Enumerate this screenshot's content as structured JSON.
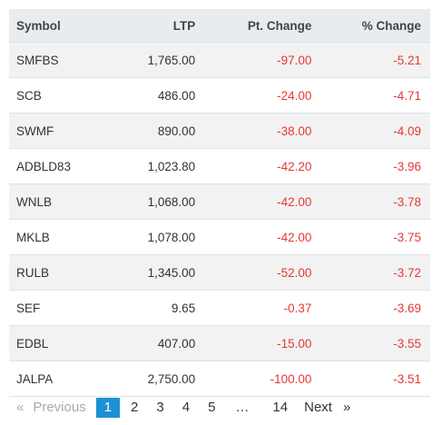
{
  "table": {
    "header": [
      "Symbol",
      "LTP",
      "Pt. Change",
      "% Change"
    ],
    "rows": [
      [
        "SMFBS",
        "1,765.00",
        "-97.00",
        "-5.21"
      ],
      [
        "SCB",
        "486.00",
        "-24.00",
        "-4.71"
      ],
      [
        "SWMF",
        "890.00",
        "-38.00",
        "-4.09"
      ],
      [
        "ADBLD83",
        "1,023.80",
        "-42.20",
        "-3.96"
      ],
      [
        "WNLB",
        "1,068.00",
        "-42.00",
        "-3.78"
      ],
      [
        "MKLB",
        "1,078.00",
        "-42.00",
        "-3.75"
      ],
      [
        "RULB",
        "1,345.00",
        "-52.00",
        "-3.72"
      ],
      [
        "SEF",
        "9.65",
        "-0.37",
        "-3.69"
      ],
      [
        "EDBL",
        "407.00",
        "-15.00",
        "-3.55"
      ],
      [
        "JALPA",
        "2,750.00",
        "-100.00",
        "-3.51"
      ]
    ]
  },
  "pagination": {
    "previous": [
      "«",
      "Previous"
    ],
    "pages": [
      "1",
      "2",
      "3",
      "4",
      "5",
      "…",
      "14"
    ],
    "active": 0,
    "next": [
      "Next",
      "»"
    ]
  }
}
